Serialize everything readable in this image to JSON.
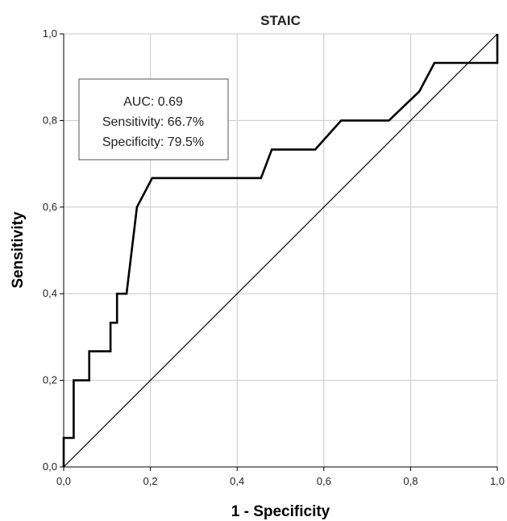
{
  "chart_data": {
    "type": "line",
    "title": "STAIC",
    "xlabel": "1 - Specificity",
    "ylabel": "Sensitivity",
    "xlim": [
      0,
      1
    ],
    "ylim": [
      0,
      1
    ],
    "xticks": [
      "0,0",
      "0,2",
      "0,4",
      "0,6",
      "0,8",
      "1,0"
    ],
    "yticks": [
      "0,0",
      "0,2",
      "0,4",
      "0,6",
      "0,8",
      "1,0"
    ],
    "grid": true,
    "series": [
      {
        "line_color": "#000000",
        "x": [
          0.0,
          0.0,
          0.023,
          0.023,
          0.045,
          0.045,
          0.059,
          0.059,
          0.108,
          0.108,
          0.123,
          0.123,
          0.145,
          0.145,
          0.169,
          0.169,
          0.204,
          0.204,
          0.455,
          0.48,
          0.58,
          0.58,
          0.64,
          0.75,
          0.82,
          0.82,
          0.855,
          1.0,
          1.0
        ],
        "y": [
          0.0,
          0.067,
          0.067,
          0.2,
          0.2,
          0.2,
          0.2,
          0.267,
          0.267,
          0.333,
          0.333,
          0.4,
          0.4,
          0.4,
          0.6,
          0.6,
          0.667,
          0.667,
          0.667,
          0.733,
          0.733,
          0.733,
          0.8,
          0.8,
          0.867,
          0.867,
          0.933,
          0.933,
          1.0
        ]
      },
      {
        "line_color": "#000000",
        "x": [
          0.0,
          1.0
        ],
        "y": [
          0.0,
          1.0
        ]
      }
    ],
    "annotation_lines": [
      "AUC: 0.69",
      "Sensitivity: 66.7%",
      "Specificity: 79.5%"
    ]
  }
}
